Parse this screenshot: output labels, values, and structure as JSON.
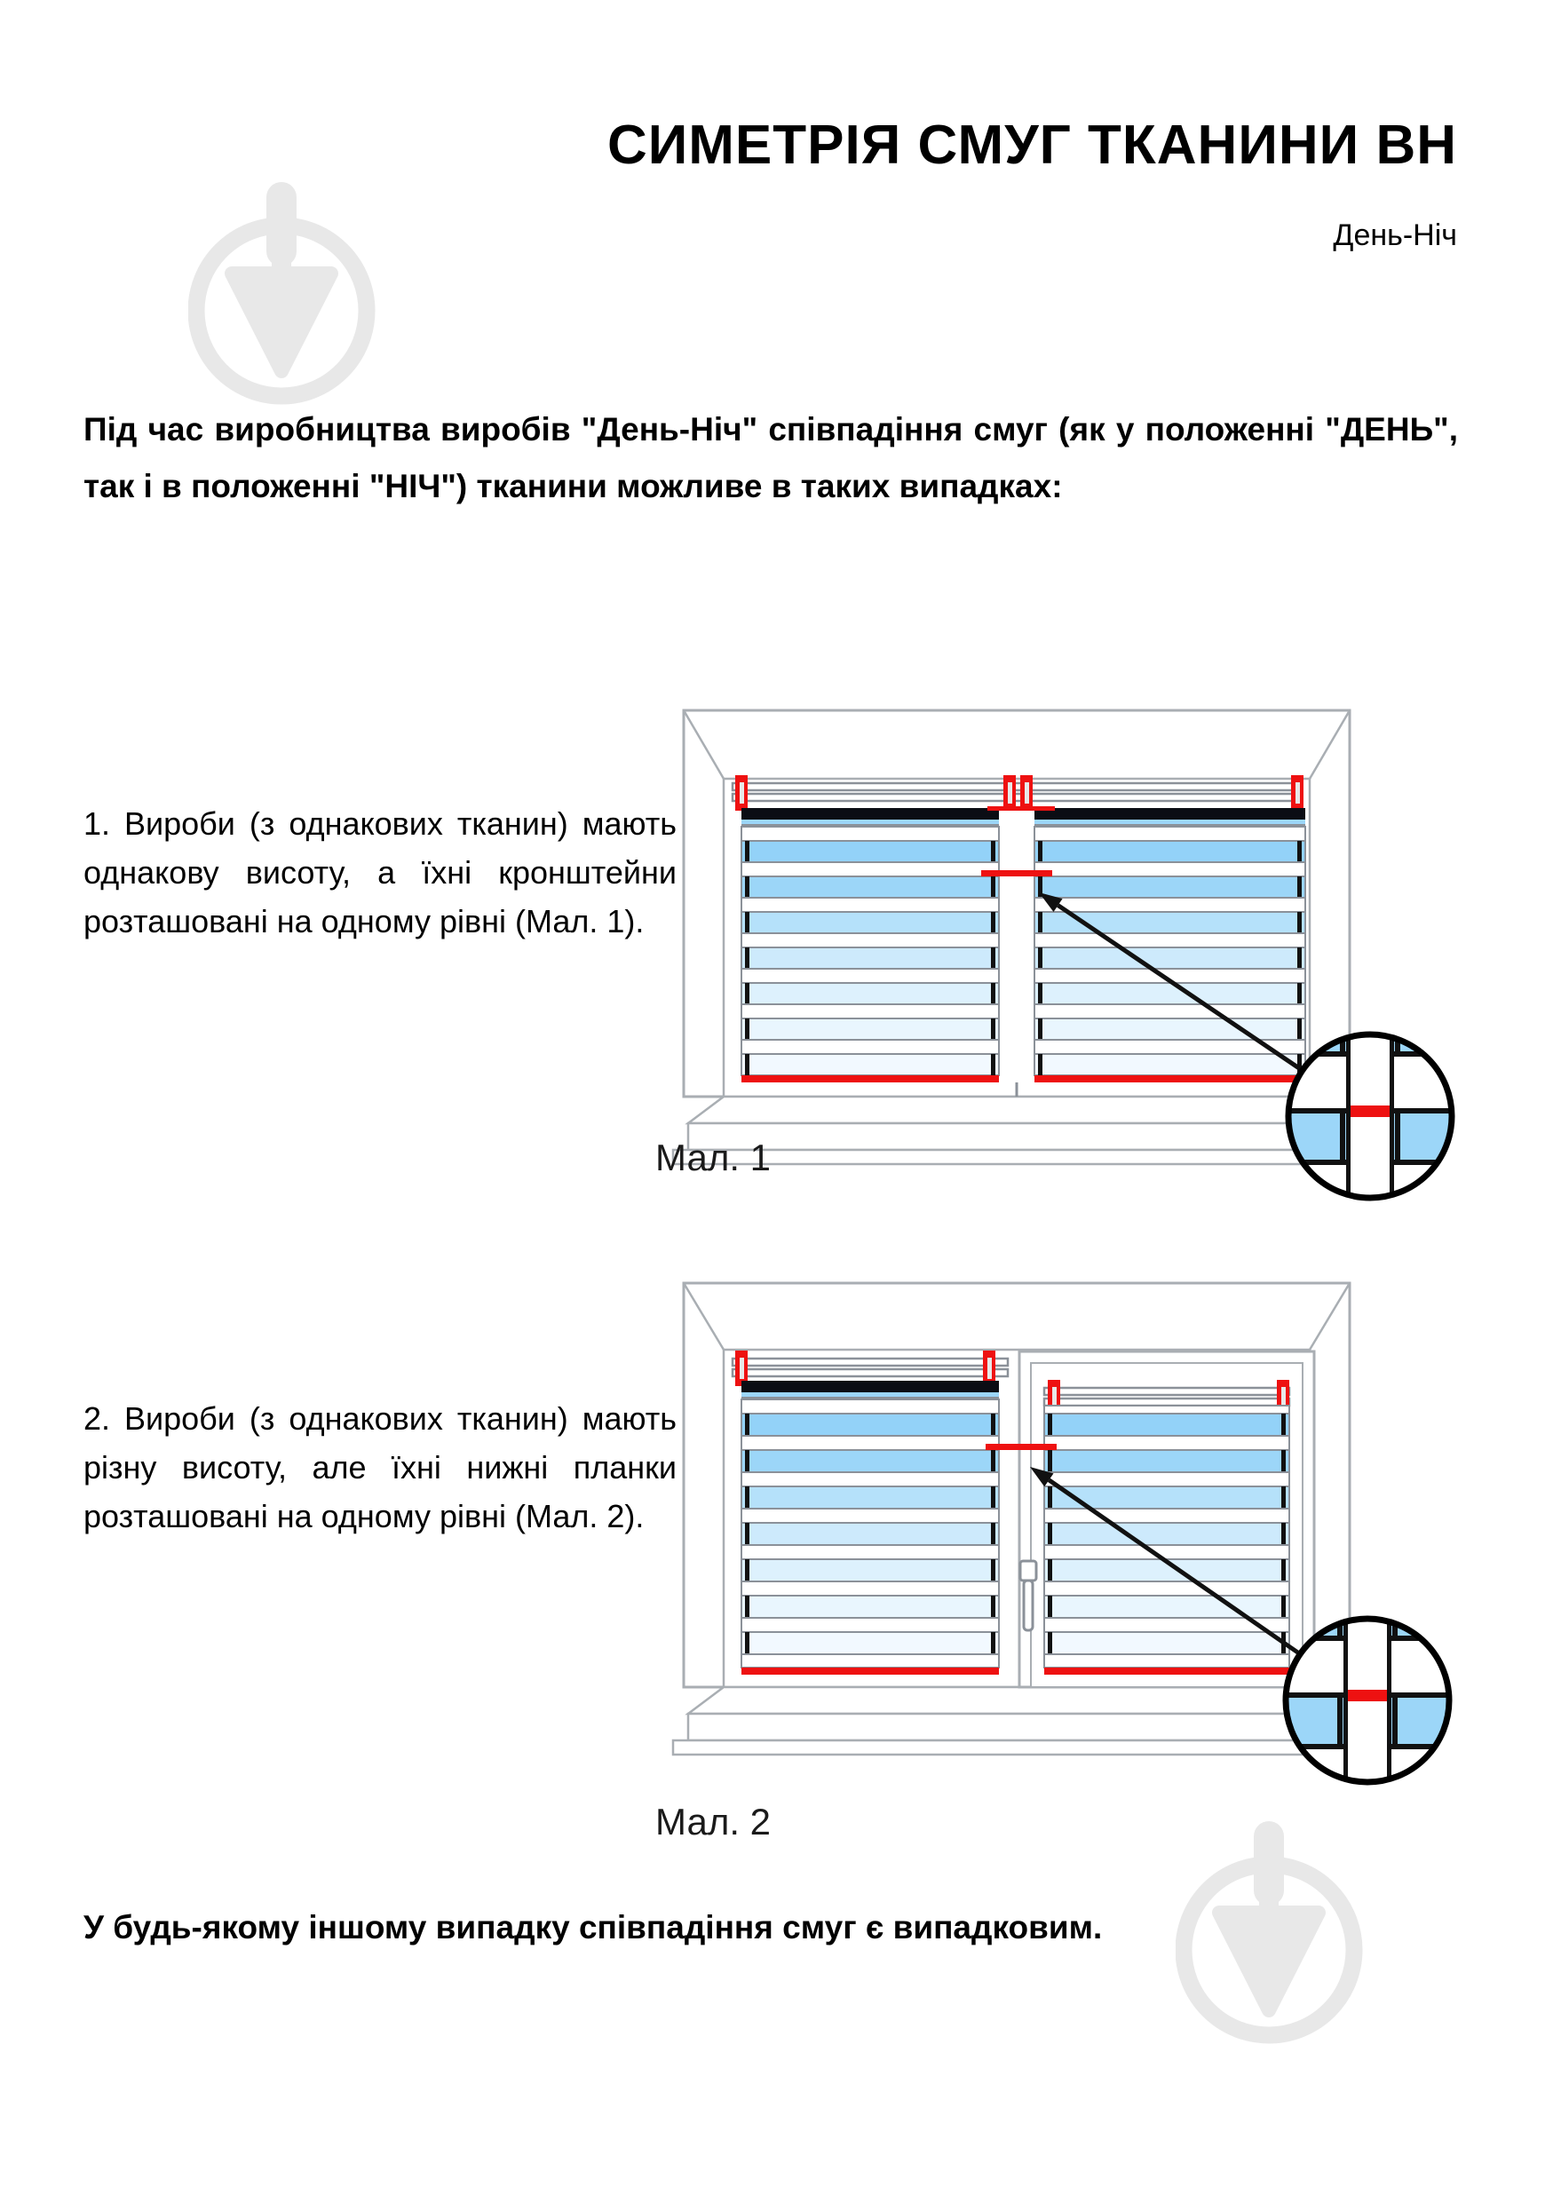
{
  "page": {
    "title": "СИМЕТРІЯ СМУГ ТКАНИНИ ВН",
    "subtitle": "День-Ніч",
    "intro": "Під час виробництва виробів \"День-Ніч\" співпадіння смуг (як у положенні \"ДЕНЬ\", так і в положенні \"НІЧ\") тканини можливе в таких випадках:",
    "footer": "У будь-якому іншому випадку співпадіння смуг є випадковим."
  },
  "sections": [
    {
      "text": "1. Вироби (з однакових тканин) мають однакову висоту, а їхні кронштейни розташовані на одному рівні (Мал. 1).",
      "figure_label": "Мал. 1"
    },
    {
      "text": "2. Вироби (з однакових тканин) мають різну висоту, але їхні нижні планки розташовані на одному рівні (Мал. 2).",
      "figure_label": "Мал. 2"
    }
  ],
  "colors": {
    "accent_red": "#ee1111",
    "stripe_dark": "#0b0d14",
    "stripe_blues": [
      "#93d2f8",
      "#9cd6f8",
      "#b5e1fa",
      "#cdeafc",
      "#ddf1fd",
      "#e9f6fe",
      "#f2f9ff"
    ],
    "rail_gray": "#8b9199",
    "frame_gray": "#a9aeb3",
    "watermark_gray": "#e8e8e8",
    "text_black": "#000000"
  }
}
